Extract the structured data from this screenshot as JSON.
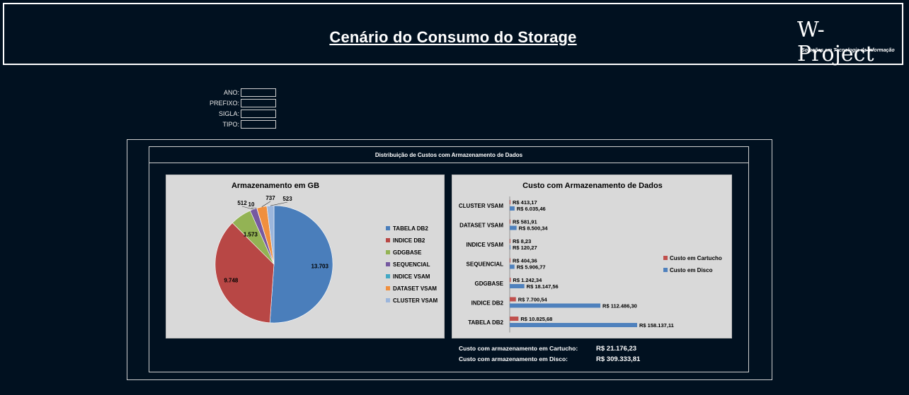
{
  "header": {
    "title": "Cenário do Consumo do Storage",
    "logo_text": "W-Project",
    "logo_tagline": "Soluções em Tecnologia da Informação"
  },
  "filters": [
    {
      "label": "ANO:",
      "value": ""
    },
    {
      "label": "PREFIXO:",
      "value": ""
    },
    {
      "label": "SIGLA:",
      "value": ""
    },
    {
      "label": "TIPO:",
      "value": ""
    }
  ],
  "panel": {
    "title": "Distribuição de Custos com Armazenamento de Dados"
  },
  "colors": {
    "tabela_db2": "#4a7ebb",
    "indice_db2": "#b84745",
    "gdgbase": "#93b354",
    "sequencial": "#7659a0",
    "indice_vsam": "#43a8c4",
    "dataset_vsam": "#f08f3e",
    "cluster_vsam": "#9cb6dc",
    "custo_cartucho": "#c0504d",
    "custo_disco": "#4f81bd"
  },
  "chart_data": [
    {
      "type": "pie",
      "title": "Armazenamento em GB",
      "labels": [
        "TABELA DB2",
        "INDICE DB2",
        "GDGBASE",
        "SEQUENCIAL",
        "INDICE VSAM",
        "DATASET VSAM",
        "CLUSTER VSAM"
      ],
      "values": [
        13703,
        9748,
        1573,
        512,
        10,
        737,
        523
      ],
      "value_labels": [
        "13.703",
        "9.748",
        "1.573",
        "512",
        "10",
        "737",
        "523"
      ],
      "legend_position": "right"
    },
    {
      "type": "bar",
      "orientation": "horizontal",
      "title": "Custo com Armazenamento de Dados",
      "categories": [
        "CLUSTER VSAM",
        "DATASET VSAM",
        "INDICE VSAM",
        "SEQUENCIAL",
        "GDGBASE",
        "INDICE DB2",
        "TABELA DB2"
      ],
      "series": [
        {
          "name": "Custo em Cartucho",
          "values": [
            413.17,
            581.91,
            8.23,
            404.36,
            1242.34,
            7700.54,
            10825.68
          ],
          "value_labels": [
            "R$ 413,17",
            "R$ 581,91",
            "R$ 8,23",
            "R$ 404,36",
            "R$ 1.242,34",
            "R$ 7.700,54",
            "R$ 10.825,68"
          ]
        },
        {
          "name": "Custo em Disco",
          "values": [
            6035.46,
            8500.34,
            120.27,
            5906.77,
            18147.56,
            112486.3,
            158137.11
          ],
          "value_labels": [
            "R$ 6.035,46",
            "R$ 8.500,34",
            "R$ 120,27",
            "R$ 5.906,77",
            "R$ 18.147,56",
            "R$ 112.486,30",
            "R$ 158.137,11"
          ]
        }
      ],
      "legend_position": "right"
    }
  ],
  "totals": {
    "cartucho_label": "Custo com armazenamento em Cartucho:",
    "cartucho_value": "R$ 21.176,23",
    "disco_label": "Custo com armazenamento em Disco:",
    "disco_value": "R$ 309.333,81"
  }
}
